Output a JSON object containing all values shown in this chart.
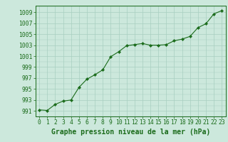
{
  "x": [
    0,
    1,
    2,
    3,
    4,
    5,
    6,
    7,
    8,
    9,
    10,
    11,
    12,
    13,
    14,
    15,
    16,
    17,
    18,
    19,
    20,
    21,
    22,
    23
  ],
  "y": [
    991.2,
    991.1,
    992.2,
    992.8,
    993.0,
    995.3,
    996.8,
    997.6,
    998.5,
    1000.9,
    1001.8,
    1002.9,
    1003.1,
    1003.3,
    1003.0,
    1003.0,
    1003.1,
    1003.8,
    1004.1,
    1004.6,
    1006.2,
    1006.9,
    1008.7,
    1009.3
  ],
  "line_color": "#1a6b1a",
  "marker_color": "#1a6b1a",
  "bg_color": "#cce8dc",
  "grid_color": "#a8cfc0",
  "xlabel": "Graphe pression niveau de la mer (hPa)",
  "xlabel_color": "#1a6b1a",
  "xlabel_fontsize": 7.0,
  "ytick_labels": [
    991,
    993,
    995,
    997,
    999,
    1001,
    1003,
    1005,
    1007,
    1009
  ],
  "ylim": [
    990.0,
    1010.2
  ],
  "xlim": [
    -0.5,
    23.5
  ],
  "xtick_labels": [
    "0",
    "1",
    "2",
    "3",
    "4",
    "5",
    "6",
    "7",
    "8",
    "9",
    "10",
    "11",
    "12",
    "13",
    "14",
    "15",
    "16",
    "17",
    "18",
    "19",
    "20",
    "21",
    "22",
    "23"
  ],
  "tick_color": "#1a6b1a",
  "tick_fontsize": 5.8,
  "axis_color": "#1a6b1a"
}
